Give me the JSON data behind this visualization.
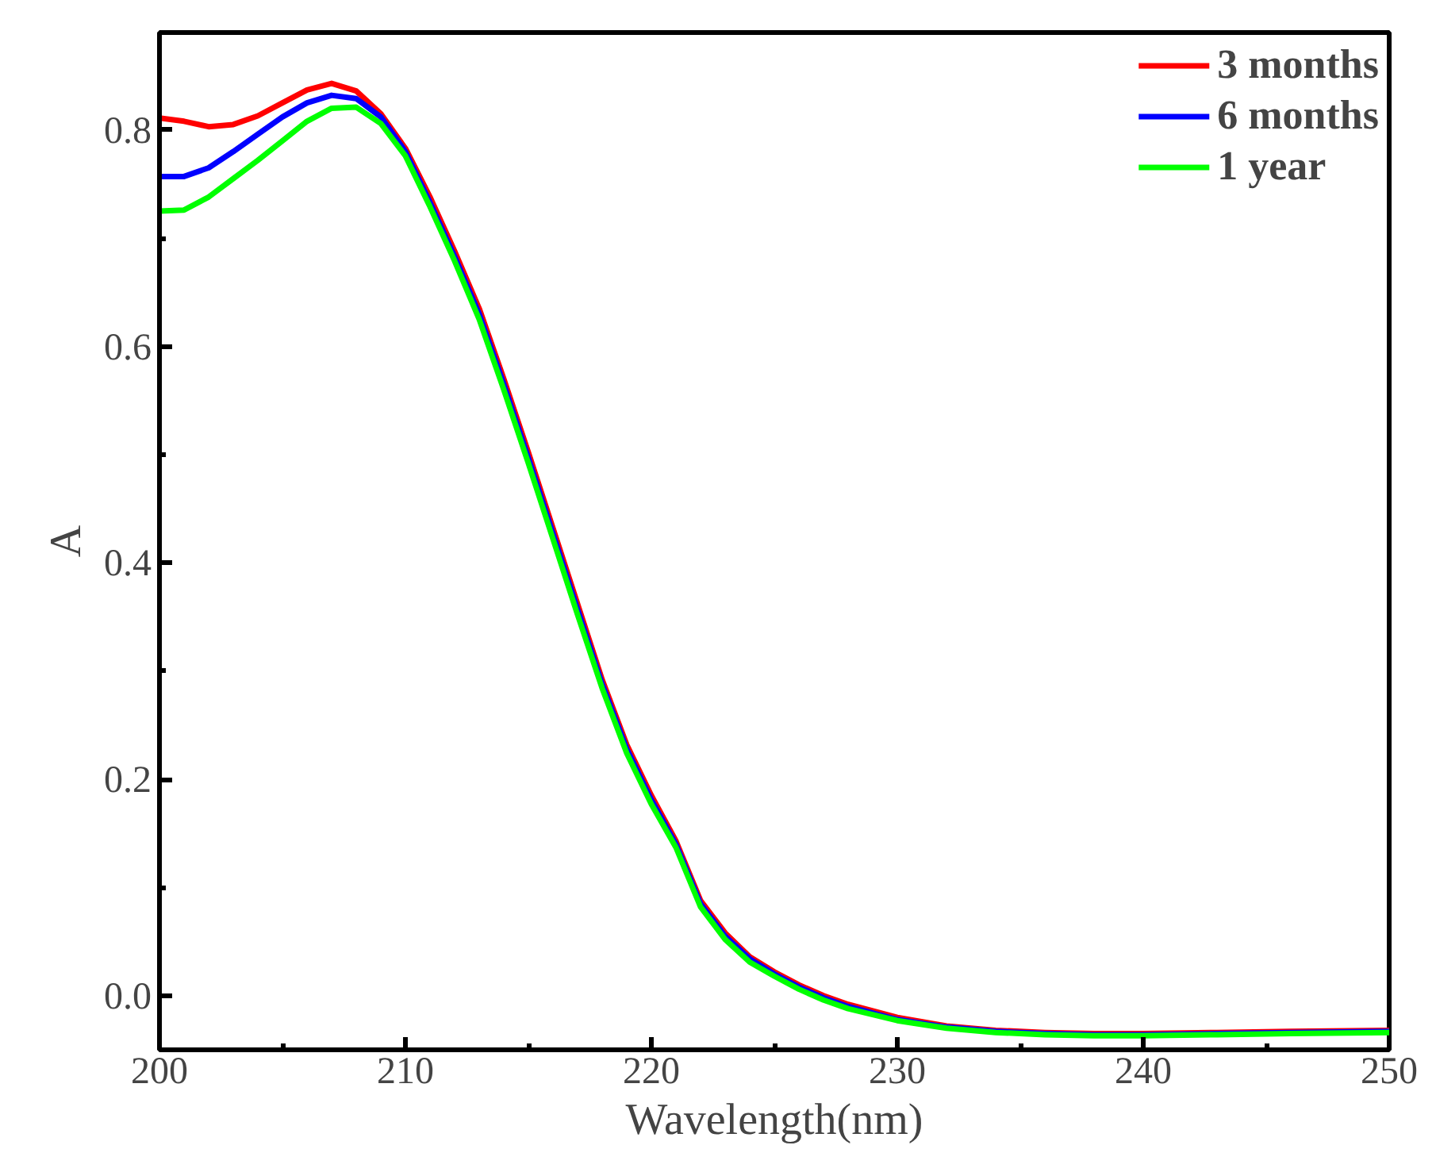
{
  "chart_data": {
    "type": "line",
    "xlabel": "Wavelength(nm)",
    "ylabel": "A",
    "x": [
      200,
      201,
      202,
      203,
      204,
      205,
      206,
      207,
      208,
      209,
      210,
      211,
      212,
      213,
      214,
      215,
      216,
      217,
      218,
      219,
      220,
      221,
      222,
      223,
      224,
      225,
      226,
      227,
      228,
      230,
      232,
      234,
      236,
      238,
      240,
      243,
      246,
      250
    ],
    "series": [
      {
        "name": "3 months",
        "color": "#ff0000",
        "values": [
          0.811,
          0.808,
          0.803,
          0.805,
          0.813,
          0.825,
          0.837,
          0.843,
          0.836,
          0.815,
          0.783,
          0.738,
          0.688,
          0.635,
          0.57,
          0.502,
          0.432,
          0.362,
          0.292,
          0.232,
          0.185,
          0.143,
          0.088,
          0.058,
          0.036,
          0.022,
          0.01,
          0.0,
          -0.008,
          -0.02,
          -0.028,
          -0.032,
          -0.034,
          -0.035,
          -0.035,
          -0.034,
          -0.033,
          -0.032
        ]
      },
      {
        "name": "6 months",
        "color": "#0000ff",
        "values": [
          0.757,
          0.757,
          0.765,
          0.78,
          0.796,
          0.812,
          0.825,
          0.832,
          0.829,
          0.812,
          0.78,
          0.733,
          0.683,
          0.63,
          0.565,
          0.497,
          0.427,
          0.357,
          0.288,
          0.228,
          0.181,
          0.14,
          0.085,
          0.055,
          0.034,
          0.02,
          0.008,
          -0.002,
          -0.01,
          -0.022,
          -0.029,
          -0.033,
          -0.035,
          -0.036,
          -0.036,
          -0.035,
          -0.034,
          -0.033
        ]
      },
      {
        "name": "1 year",
        "color": "#00ff00",
        "values": [
          0.725,
          0.726,
          0.738,
          0.755,
          0.772,
          0.79,
          0.808,
          0.82,
          0.821,
          0.806,
          0.776,
          0.729,
          0.679,
          0.625,
          0.56,
          0.492,
          0.422,
          0.352,
          0.284,
          0.224,
          0.177,
          0.137,
          0.082,
          0.052,
          0.031,
          0.018,
          0.006,
          -0.004,
          -0.012,
          -0.023,
          -0.03,
          -0.034,
          -0.036,
          -0.037,
          -0.037,
          -0.036,
          -0.035,
          -0.034
        ]
      }
    ],
    "xlim": [
      200,
      250
    ],
    "ylim": [
      -0.05,
      0.89
    ],
    "xticks": [
      200,
      210,
      220,
      230,
      240,
      250
    ],
    "yticks": [
      {
        "value": 0,
        "label": "0.0"
      },
      0.2,
      0.4,
      0.6,
      0.8
    ],
    "grid": false,
    "legend": "top right",
    "line_style": "solid",
    "marker": "none"
  }
}
